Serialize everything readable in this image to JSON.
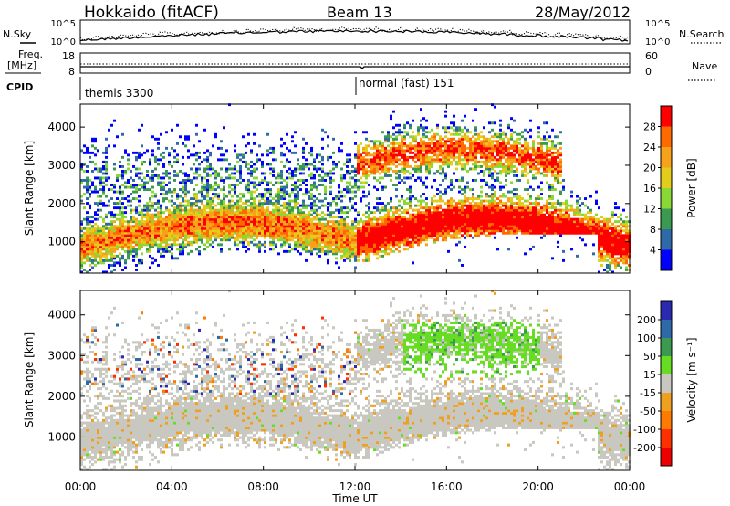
{
  "header": {
    "station": "Hokkaido (fitACF)",
    "beam": "Beam 13",
    "date": "28/May/2012"
  },
  "nsky_panel": {
    "left_label": "N.Sky",
    "right_label": "N.Search",
    "left_ticks": [
      "10^5",
      "10^0"
    ],
    "right_ticks": [
      "10^5",
      "10^0"
    ]
  },
  "freq_panel": {
    "left_label_1": "Freq.",
    "left_label_2": "[MHz]",
    "right_label": "Nave",
    "left_ticks": [
      "18",
      "8"
    ],
    "right_ticks": [
      "60",
      "0"
    ]
  },
  "cpid_panel": {
    "label": "CPID",
    "modes": [
      {
        "name": "themis 3300",
        "start": "00:00"
      },
      {
        "name": "normal (fast) 151",
        "start": "12:00"
      }
    ]
  },
  "time_axis": {
    "label": "Time UT",
    "ticks": [
      "00:00",
      "04:00",
      "08:00",
      "12:00",
      "16:00",
      "20:00",
      "00:00"
    ]
  },
  "chart_data": [
    {
      "type": "heatmap",
      "name": "power-panel",
      "ylabel": "Slant Range [km]",
      "xlabel": "Time UT",
      "yticks": [
        1000,
        2000,
        3000,
        4000
      ],
      "ylim": [
        180,
        4600
      ],
      "xlim_hours": [
        0,
        24
      ],
      "colorbar": {
        "label": "Power [dB]",
        "ticks": [
          "28",
          "24",
          "20",
          "16",
          "12",
          "8",
          "4"
        ],
        "colors": [
          "#ff0000",
          "#ff6a00",
          "#f6a21a",
          "#e4cc1c",
          "#8ad836",
          "#3c9a50",
          "#2f6aa8",
          "#0000ff"
        ]
      }
    },
    {
      "type": "heatmap",
      "name": "velocity-panel",
      "ylabel": "Slant Range [km]",
      "xlabel": "Time UT",
      "yticks": [
        1000,
        2000,
        3000,
        4000
      ],
      "ylim": [
        180,
        4600
      ],
      "xlim_hours": [
        0,
        24
      ],
      "colorbar": {
        "label": "Velocity [m s⁻¹]",
        "ticks": [
          "200",
          "100",
          "50",
          "15",
          "-15",
          "-50",
          "-100",
          "-200"
        ],
        "colors": [
          "#2a2ab0",
          "#2f6aa8",
          "#3c9a50",
          "#66dd22",
          "#c8c8c0",
          "#f0a020",
          "#ff7a00",
          "#ff3000",
          "#ee0000"
        ]
      }
    }
  ]
}
